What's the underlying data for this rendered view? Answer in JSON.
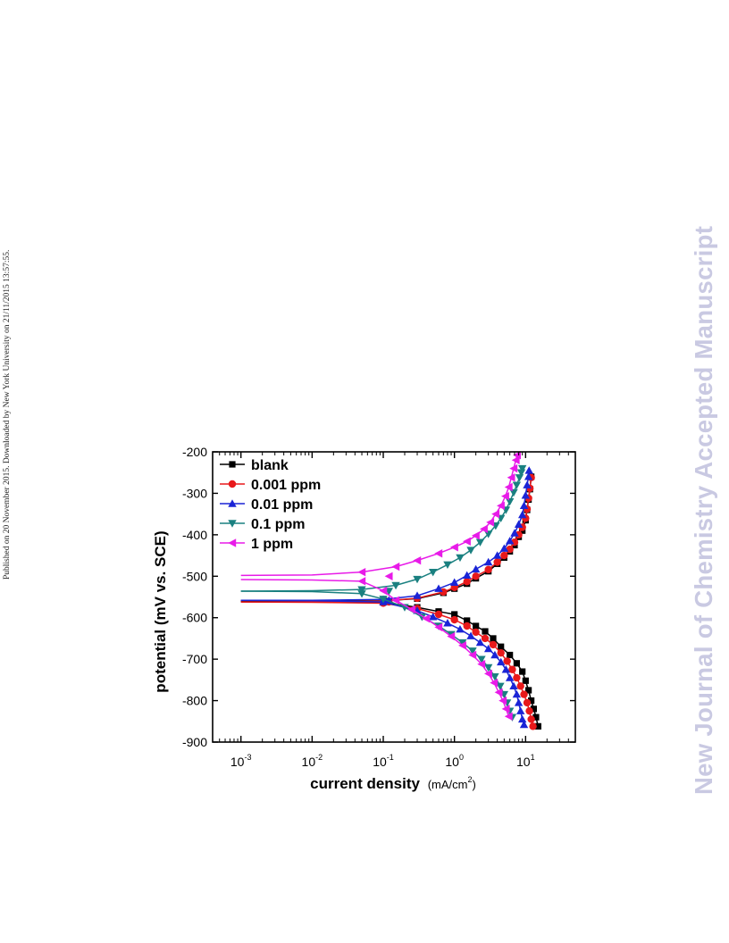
{
  "side_note": "Published on 20 November 2015. Downloaded by New York University on 21/11/2015 13:57:55.",
  "watermark": "New Journal of Chemistry Accepted Manuscript",
  "chart_data": {
    "type": "line",
    "xlabel": "current density",
    "xlabel_unit": "(mA/cm",
    "xlabel_unit_sup": "2",
    "xlabel_unit_end": ")",
    "ylabel": "potential (mV vs. SCE)",
    "x_scale": "log",
    "xlim": [
      0.0004,
      50
    ],
    "ylim": [
      -900,
      -200
    ],
    "x_ticks": [
      {
        "value": 0.001,
        "base": "10",
        "exp": "-3"
      },
      {
        "value": 0.01,
        "base": "10",
        "exp": "-2"
      },
      {
        "value": 0.1,
        "base": "10",
        "exp": "-1"
      },
      {
        "value": 1,
        "base": "10",
        "exp": "0"
      },
      {
        "value": 10,
        "base": "10",
        "exp": "1"
      }
    ],
    "y_ticks": [
      -200,
      -300,
      -400,
      -500,
      -600,
      -700,
      -800,
      -900
    ],
    "legend_position": "top-left",
    "grid": false,
    "series": [
      {
        "name": "blank",
        "color": "#000000",
        "marker": "square",
        "corr_potential": -560,
        "anodic": [
          [
            0.001,
            -560
          ],
          [
            0.01,
            -560
          ],
          [
            0.1,
            -559
          ],
          [
            0.3,
            -554
          ],
          [
            0.7,
            -540
          ],
          [
            1,
            -530
          ],
          [
            1.5,
            -518
          ],
          [
            2,
            -505
          ],
          [
            3,
            -488
          ],
          [
            4,
            -470
          ],
          [
            5,
            -455
          ],
          [
            6,
            -440
          ],
          [
            7,
            -425
          ],
          [
            8,
            -405
          ],
          [
            9,
            -390
          ],
          [
            10,
            -365
          ],
          [
            10.5,
            -340
          ],
          [
            11,
            -315
          ],
          [
            11.5,
            -290
          ],
          [
            12,
            -260
          ]
        ],
        "cathodic": [
          [
            0.001,
            -560
          ],
          [
            0.01,
            -561
          ],
          [
            0.1,
            -563
          ],
          [
            0.3,
            -575
          ],
          [
            0.6,
            -585
          ],
          [
            1,
            -592
          ],
          [
            1.5,
            -607
          ],
          [
            2,
            -620
          ],
          [
            2.7,
            -633
          ],
          [
            3.5,
            -650
          ],
          [
            4.5,
            -670
          ],
          [
            6,
            -690
          ],
          [
            7.5,
            -710
          ],
          [
            9,
            -730
          ],
          [
            10,
            -752
          ],
          [
            11,
            -775
          ],
          [
            12,
            -800
          ],
          [
            13,
            -820
          ],
          [
            14,
            -840
          ],
          [
            15,
            -862
          ]
        ]
      },
      {
        "name": "0.001 ppm",
        "color": "#e8191b",
        "marker": "circle",
        "corr_potential": -562,
        "anodic": [
          [
            0.001,
            -562
          ],
          [
            0.01,
            -562
          ],
          [
            0.1,
            -560
          ],
          [
            0.3,
            -553
          ],
          [
            0.7,
            -538
          ],
          [
            1,
            -527
          ],
          [
            1.5,
            -513
          ],
          [
            2,
            -500
          ],
          [
            3,
            -484
          ],
          [
            4,
            -466
          ],
          [
            5,
            -450
          ],
          [
            6,
            -435
          ],
          [
            7,
            -418
          ],
          [
            8,
            -400
          ],
          [
            9,
            -382
          ],
          [
            10,
            -360
          ],
          [
            10.5,
            -338
          ],
          [
            11,
            -312
          ],
          [
            11.5,
            -288
          ],
          [
            12,
            -262
          ]
        ],
        "cathodic": [
          [
            0.001,
            -562
          ],
          [
            0.01,
            -563
          ],
          [
            0.1,
            -565
          ],
          [
            0.3,
            -578
          ],
          [
            0.6,
            -592
          ],
          [
            1,
            -605
          ],
          [
            1.5,
            -620
          ],
          [
            2,
            -635
          ],
          [
            2.7,
            -650
          ],
          [
            3.5,
            -665
          ],
          [
            4.5,
            -685
          ],
          [
            5.5,
            -705
          ],
          [
            6.5,
            -725
          ],
          [
            7.5,
            -745
          ],
          [
            8.5,
            -765
          ],
          [
            9.5,
            -785
          ],
          [
            10.5,
            -805
          ],
          [
            11.3,
            -825
          ],
          [
            12,
            -845
          ],
          [
            12.7,
            -862
          ]
        ]
      },
      {
        "name": "0.01 ppm",
        "color": "#1a24d6",
        "marker": "triangle-up",
        "corr_potential": -558,
        "anodic": [
          [
            0.001,
            -558
          ],
          [
            0.01,
            -558
          ],
          [
            0.1,
            -556
          ],
          [
            0.3,
            -547
          ],
          [
            0.6,
            -530
          ],
          [
            1,
            -515
          ],
          [
            1.5,
            -498
          ],
          [
            2,
            -483
          ],
          [
            3,
            -466
          ],
          [
            4,
            -450
          ],
          [
            5,
            -433
          ],
          [
            6,
            -415
          ],
          [
            7,
            -396
          ],
          [
            8,
            -375
          ],
          [
            9,
            -352
          ],
          [
            9.5,
            -330
          ],
          [
            10,
            -305
          ],
          [
            10.5,
            -280
          ],
          [
            11,
            -260
          ],
          [
            11.2,
            -245
          ]
        ],
        "cathodic": [
          [
            0.001,
            -558
          ],
          [
            0.01,
            -559
          ],
          [
            0.1,
            -562
          ],
          [
            0.3,
            -583
          ],
          [
            0.5,
            -598
          ],
          [
            0.8,
            -613
          ],
          [
            1.2,
            -628
          ],
          [
            1.7,
            -644
          ],
          [
            2.3,
            -660
          ],
          [
            3,
            -675
          ],
          [
            3.7,
            -690
          ],
          [
            4.5,
            -707
          ],
          [
            5.3,
            -725
          ],
          [
            6,
            -745
          ],
          [
            6.8,
            -765
          ],
          [
            7.5,
            -785
          ],
          [
            8,
            -805
          ],
          [
            8.5,
            -825
          ],
          [
            9,
            -845
          ],
          [
            9.5,
            -858
          ]
        ]
      },
      {
        "name": "0.1 ppm",
        "color": "#1a8080",
        "marker": "triangle-down",
        "corr_potential": -536,
        "anodic": [
          [
            0.001,
            -536
          ],
          [
            0.01,
            -535
          ],
          [
            0.05,
            -532
          ],
          [
            0.15,
            -522
          ],
          [
            0.3,
            -507
          ],
          [
            0.5,
            -490
          ],
          [
            0.8,
            -472
          ],
          [
            1.2,
            -455
          ],
          [
            1.7,
            -437
          ],
          [
            2.3,
            -418
          ],
          [
            3,
            -398
          ],
          [
            3.8,
            -378
          ],
          [
            4.5,
            -360
          ],
          [
            5.3,
            -340
          ],
          [
            6,
            -320
          ],
          [
            6.8,
            -298
          ],
          [
            7.5,
            -280
          ],
          [
            8.2,
            -262
          ],
          [
            8.7,
            -250
          ],
          [
            9,
            -240
          ]
        ],
        "cathodic": [
          [
            0.001,
            -536
          ],
          [
            0.01,
            -537
          ],
          [
            0.05,
            -542
          ],
          [
            0.1,
            -555
          ],
          [
            0.2,
            -575
          ],
          [
            0.35,
            -598
          ],
          [
            0.6,
            -620
          ],
          [
            0.9,
            -640
          ],
          [
            1.3,
            -660
          ],
          [
            1.8,
            -680
          ],
          [
            2.4,
            -700
          ],
          [
            3,
            -720
          ],
          [
            3.7,
            -742
          ],
          [
            4.4,
            -765
          ],
          [
            5,
            -785
          ],
          [
            5.5,
            -805
          ],
          [
            6,
            -825
          ],
          [
            6.5,
            -840
          ]
        ]
      },
      {
        "name": "1 ppm",
        "color": "#e81be8",
        "marker": "triangle-left",
        "corr_potential": -500,
        "anodic": [
          [
            0.001,
            -498
          ],
          [
            0.01,
            -497
          ],
          [
            0.05,
            -490
          ],
          [
            0.15,
            -477
          ],
          [
            0.3,
            -462
          ],
          [
            0.6,
            -445
          ],
          [
            1,
            -430
          ],
          [
            1.5,
            -416
          ],
          [
            2,
            -402
          ],
          [
            2.6,
            -386
          ],
          [
            3.2,
            -370
          ],
          [
            3.8,
            -350
          ],
          [
            4.5,
            -330
          ],
          [
            5.2,
            -307
          ],
          [
            5.8,
            -285
          ],
          [
            6.3,
            -262
          ],
          [
            6.8,
            -240
          ],
          [
            7.3,
            -220
          ],
          [
            7.6,
            -208
          ]
        ],
        "cathodic": [
          [
            0.001,
            -508
          ],
          [
            0.01,
            -509
          ],
          [
            0.05,
            -512
          ],
          [
            0.1,
            -535
          ],
          [
            0.15,
            -558
          ],
          [
            0.25,
            -580
          ],
          [
            0.4,
            -602
          ],
          [
            0.6,
            -623
          ],
          [
            0.9,
            -645
          ],
          [
            1.3,
            -667
          ],
          [
            1.8,
            -690
          ],
          [
            2.4,
            -712
          ],
          [
            3,
            -735
          ],
          [
            3.6,
            -757
          ],
          [
            4.2,
            -780
          ],
          [
            4.8,
            -800
          ],
          [
            5.3,
            -820
          ],
          [
            5.8,
            -838
          ]
        ]
      }
    ]
  }
}
